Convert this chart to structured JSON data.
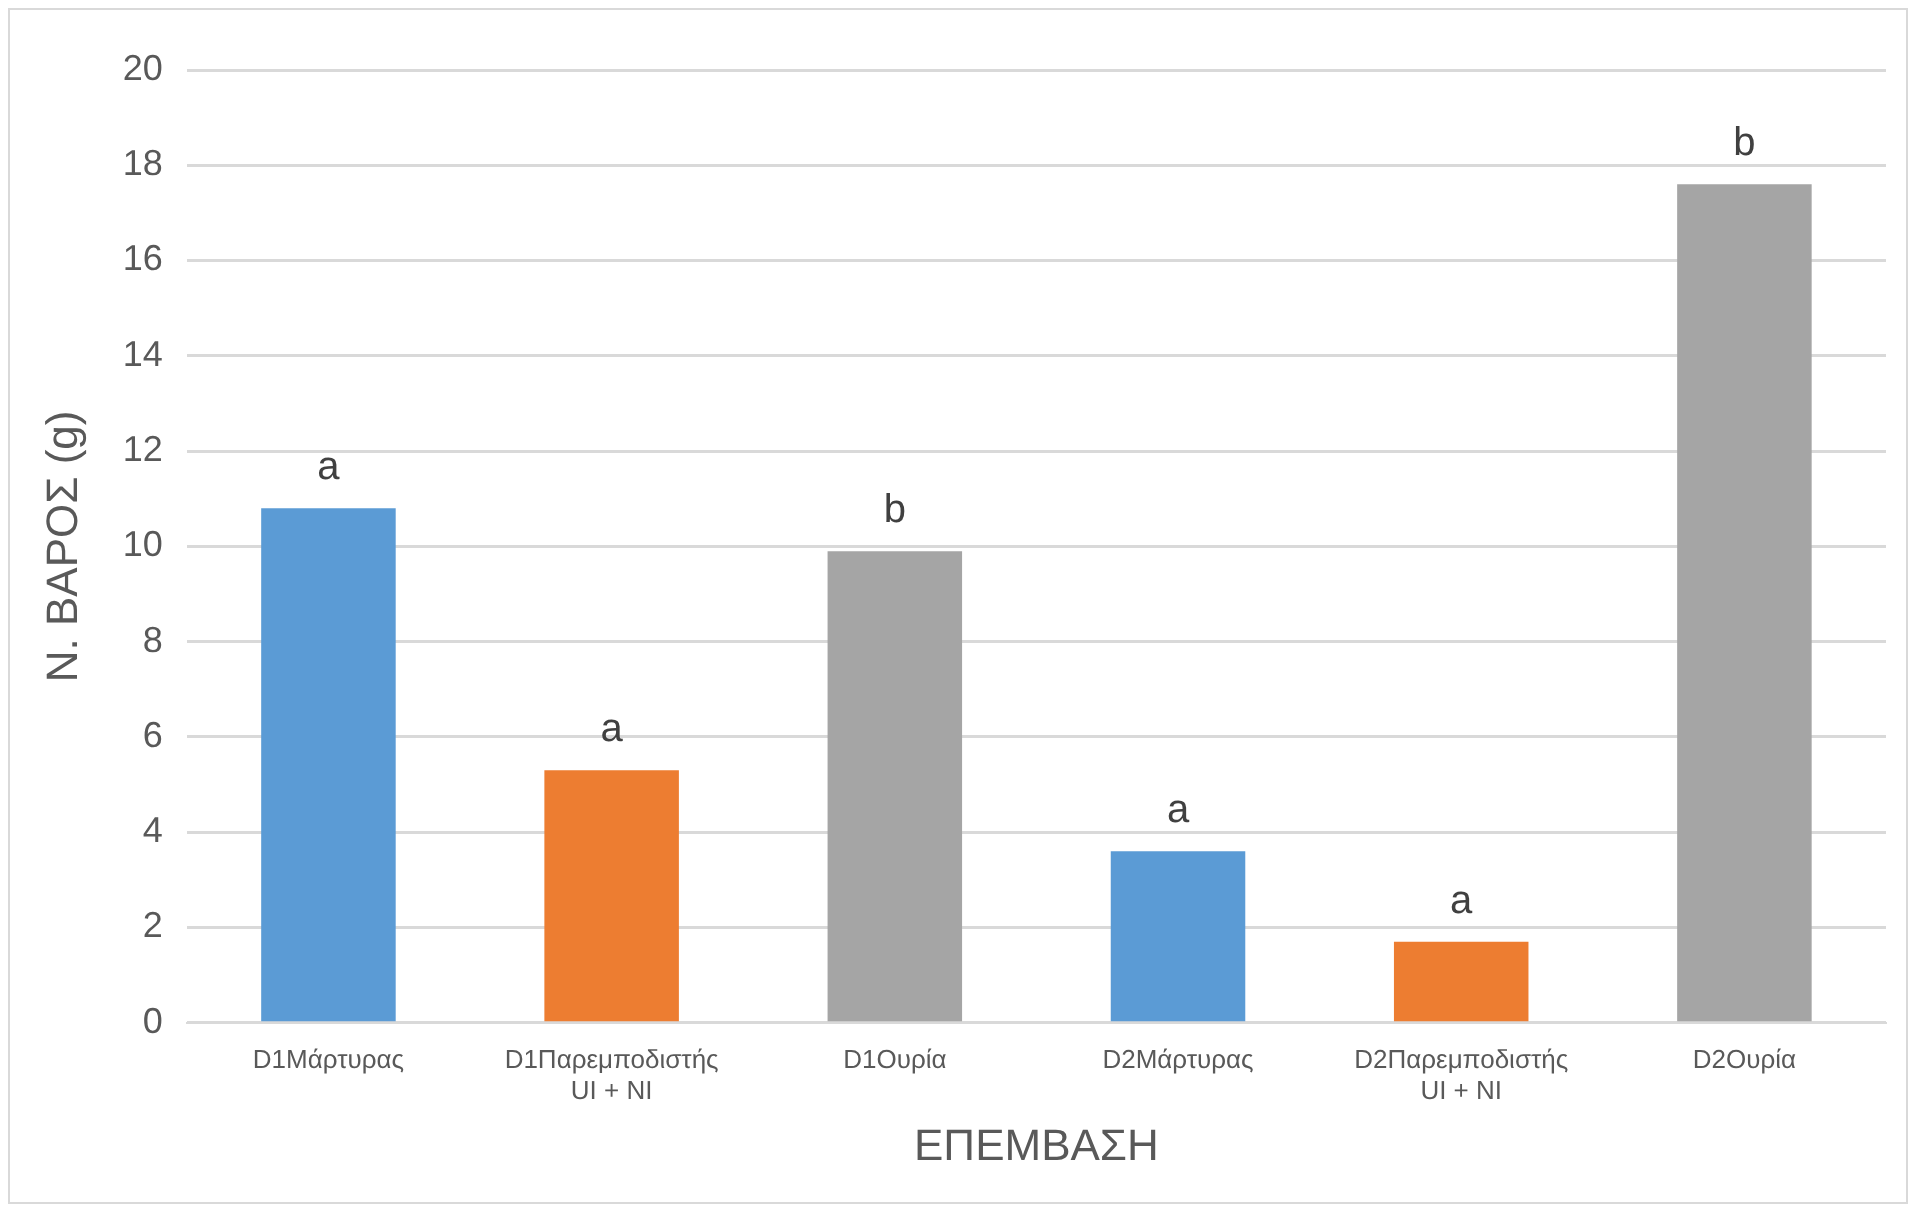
{
  "chart_data": {
    "type": "bar",
    "xlabel": "ΕΠΕΜΒΑΣΗ",
    "ylabel": "Ν. ΒΑΡΟΣ (g)",
    "categories": [
      "D1Μάρτυρας",
      "D1Παρεμποδιστής UI + NI",
      "D1Ουρία",
      "D2Μάρτυρας",
      "D2Παρεμποδιστής UI + NI",
      "D2Ουρία"
    ],
    "values": [
      10.8,
      5.3,
      9.9,
      3.6,
      1.7,
      17.6
    ],
    "colors": [
      "#5b9bd5",
      "#ed7d31",
      "#a5a5a5",
      "#5b9bd5",
      "#ed7d31",
      "#a5a5a5"
    ],
    "ylim": [
      0,
      20
    ],
    "yticks": [
      0,
      2,
      4,
      6,
      8,
      10,
      12,
      14,
      16,
      18,
      20
    ],
    "grid": "y",
    "legend": false,
    "annotations": [
      {
        "text": "a",
        "x": "D1Μάρτυρας",
        "y": 10.8
      },
      {
        "text": "a",
        "x": "D1Παρεμποδιστής UI + NI",
        "y": 5.3
      },
      {
        "text": "b",
        "x": "D1Ουρία",
        "y": 9.9
      },
      {
        "text": "a",
        "x": "D2Μάρτυρας",
        "y": 3.6
      },
      {
        "text": "a",
        "x": "D2Παρεμποδιστής UI + NI",
        "y": 1.7
      },
      {
        "text": "b",
        "x": "D2Ουρία",
        "y": 17.6
      }
    ]
  }
}
